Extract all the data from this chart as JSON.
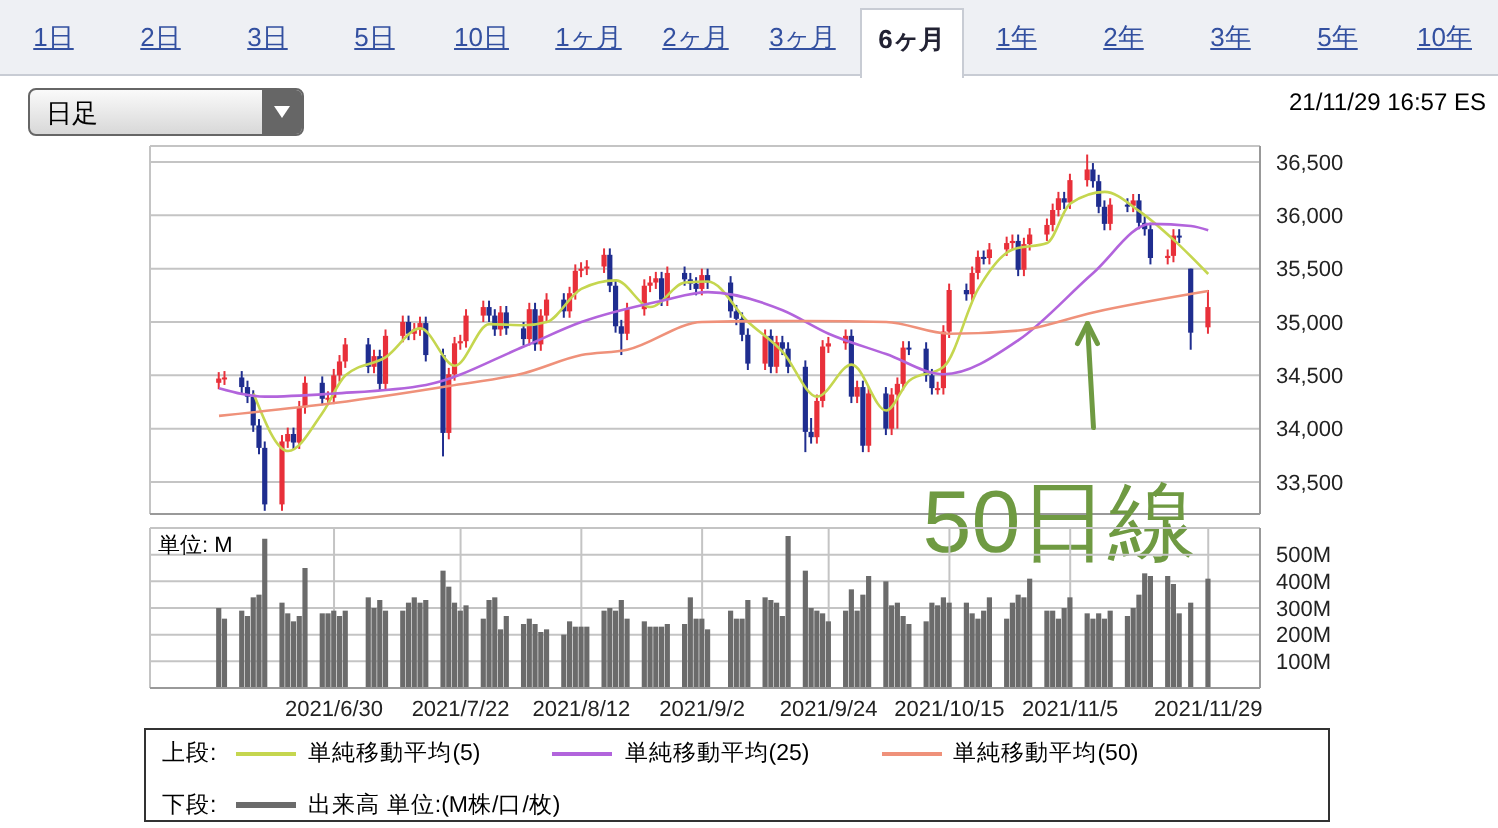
{
  "chart_data": [
    {
      "type": "other",
      "annotations": [
        "1日",
        "2日",
        "3日",
        "5日",
        "10日",
        "1ヶ月",
        "2ヶ月",
        "3ヶ月",
        "6ヶ月",
        "1年",
        "2年",
        "3年",
        "5年",
        "10年",
        "日足",
        "21/11/29 16:57 ES"
      ]
    },
    {
      "type": "candlestick",
      "legend_title": "上段:",
      "legend": "bottom",
      "grid": true,
      "tick_labels": "y",
      "colors": [
        "#e8303a",
        "#e8303a",
        "#1f2d8f",
        "#1f2d8f",
        "#1f2d8f",
        "#1f2d8f",
        "#1f2d8f",
        "#e8303a",
        "#e8303a",
        "#1f2d8f",
        "#e8303a",
        "#e8303a",
        "#1f2d8f",
        "#e8303a",
        "#e8303a",
        "#e8303a",
        "#e8303a",
        "#1f2d8f",
        "#e8303a",
        "#1f2d8f",
        "#e8303a",
        "#e8303a",
        "#1f2d8f",
        "#e8303a",
        "#e8303a",
        "#1f2d8f",
        "#1f2d8f",
        "#e8303a",
        "#e8303a",
        "#e8303a",
        "#e8303a",
        "#e8303a",
        "#1f2d8f",
        "#1f2d8f",
        "#e8303a",
        "#1f2d8f",
        "#1f2d8f",
        "#e8303a",
        "#1f2d8f",
        "#e8303a",
        "#e8303a",
        "#1f2d8f",
        "#e8303a",
        "#e8303a",
        "#e8303a",
        "#e8303a",
        "#e8303a",
        "#1f2d8f",
        "#1f2d8f",
        "#1f2d8f",
        "#e8303a",
        "#e8303a",
        "#e8303a",
        "#e8303a",
        "#1f2d8f",
        "#e8303a",
        "#1f2d8f",
        "#1f2d8f",
        "#1f2d8f",
        "#e8303a",
        "#1f2d8f",
        "#1f2d8f",
        "#1f2d8f",
        "#1f2d8f",
        "#1f2d8f",
        "#e8303a",
        "#1f2d8f",
        "#e8303a",
        "#1f2d8f",
        "#1f2d8f",
        "#1f2d8f",
        "#1f2d8f",
        "#e8303a",
        "#e8303a",
        "#e8303a",
        "#e8303a",
        "#1f2d8f",
        "#e8303a",
        "#1f2d8f",
        "#e8303a",
        "#1f2d8f",
        "#e8303a",
        "#e8303a",
        "#e8303a",
        "#1f2d8f",
        "#1f2d8f",
        "#1f2d8f",
        "#e8303a",
        "#e8303a",
        "#e8303a",
        "#1f2d8f",
        "#e8303a",
        "#e8303a",
        "#1f2d8f",
        "#e8303a",
        "#e8303a",
        "#e8303a",
        "#1f2d8f",
        "#e8303a",
        "#e8303a",
        "#e8303a",
        "#e8303a",
        "#e8303a",
        "#1f2d8f",
        "#e8303a",
        "#e8303a",
        "#1f2d8f",
        "#1f2d8f",
        "#1f2d8f",
        "#e8303a",
        "#1f2d8f",
        "#e8303a",
        "#1f2d8f",
        "#1f2d8f",
        "#1f2d8f",
        "#e8303a",
        "#e8303a",
        "#1f2d8f",
        "#1f2d8f",
        "#e8303a"
      ],
      "x": [
        "2021-06-10",
        "2021-06-11",
        "2021-06-14",
        "2021-06-15",
        "2021-06-16",
        "2021-06-17",
        "2021-06-18",
        "2021-06-21",
        "2021-06-22",
        "2021-06-23",
        "2021-06-24",
        "2021-06-25",
        "2021-06-28",
        "2021-06-29",
        "2021-06-30",
        "2021-07-01",
        "2021-07-02",
        "2021-07-06",
        "2021-07-07",
        "2021-07-08",
        "2021-07-09",
        "2021-07-12",
        "2021-07-13",
        "2021-07-14",
        "2021-07-15",
        "2021-07-16",
        "2021-07-19",
        "2021-07-20",
        "2021-07-21",
        "2021-07-22",
        "2021-07-23",
        "2021-07-26",
        "2021-07-27",
        "2021-07-28",
        "2021-07-29",
        "2021-07-30",
        "2021-08-02",
        "2021-08-03",
        "2021-08-04",
        "2021-08-05",
        "2021-08-06",
        "2021-08-09",
        "2021-08-10",
        "2021-08-11",
        "2021-08-12",
        "2021-08-13",
        "2021-08-16",
        "2021-08-17",
        "2021-08-18",
        "2021-08-19",
        "2021-08-20",
        "2021-08-23",
        "2021-08-24",
        "2021-08-25",
        "2021-08-26",
        "2021-08-27",
        "2021-08-30",
        "2021-08-31",
        "2021-09-01",
        "2021-09-02",
        "2021-09-03",
        "2021-09-07",
        "2021-09-08",
        "2021-09-09",
        "2021-09-10",
        "2021-09-13",
        "2021-09-14",
        "2021-09-15",
        "2021-09-16",
        "2021-09-17",
        "2021-09-20",
        "2021-09-21",
        "2021-09-22",
        "2021-09-23",
        "2021-09-24",
        "2021-09-27",
        "2021-09-28",
        "2021-09-29",
        "2021-09-30",
        "2021-10-01",
        "2021-10-04",
        "2021-10-05",
        "2021-10-06",
        "2021-10-07",
        "2021-10-08",
        "2021-10-11",
        "2021-10-12",
        "2021-10-13",
        "2021-10-14",
        "2021-10-15",
        "2021-10-18",
        "2021-10-19",
        "2021-10-20",
        "2021-10-21",
        "2021-10-22",
        "2021-10-25",
        "2021-10-26",
        "2021-10-27",
        "2021-10-28",
        "2021-10-29",
        "2021-11-01",
        "2021-11-02",
        "2021-11-03",
        "2021-11-04",
        "2021-11-05",
        "2021-11-08",
        "2021-11-09",
        "2021-11-10",
        "2021-11-11",
        "2021-11-12",
        "2021-11-15",
        "2021-11-16",
        "2021-11-17",
        "2021-11-18",
        "2021-11-19",
        "2021-11-22",
        "2021-11-23",
        "2021-11-24",
        "2021-11-26",
        "2021-11-29"
      ],
      "ohlc": [
        [
          34430,
          34530,
          34370,
          34470
        ],
        [
          34470,
          34540,
          34410,
          34480
        ],
        [
          34480,
          34540,
          34330,
          34390
        ],
        [
          34390,
          34450,
          34240,
          34300
        ],
        [
          34300,
          34360,
          33970,
          34030
        ],
        [
          34030,
          34090,
          33760,
          33820
        ],
        [
          33820,
          33880,
          33230,
          33290
        ],
        [
          33290,
          33940,
          33230,
          33880
        ],
        [
          33880,
          34010,
          33820,
          33950
        ],
        [
          33950,
          34010,
          33810,
          33870
        ],
        [
          33870,
          34260,
          33810,
          34200
        ],
        [
          34200,
          34490,
          34140,
          34430
        ],
        [
          34430,
          34490,
          34220,
          34280
        ],
        [
          34280,
          34350,
          34220,
          34290
        ],
        [
          34290,
          34560,
          34230,
          34500
        ],
        [
          34500,
          34690,
          34440,
          34630
        ],
        [
          34630,
          34850,
          34570,
          34790
        ],
        [
          34790,
          34850,
          34520,
          34580
        ],
        [
          34580,
          34740,
          34520,
          34680
        ],
        [
          34680,
          34740,
          34360,
          34420
        ],
        [
          34420,
          34930,
          34360,
          34870
        ],
        [
          34870,
          35060,
          34810,
          35000
        ],
        [
          35000,
          35060,
          34830,
          34890
        ],
        [
          34890,
          34990,
          34830,
          34930
        ],
        [
          34930,
          35050,
          34870,
          34990
        ],
        [
          34990,
          35050,
          34630,
          34690
        ],
        [
          34690,
          34750,
          33740,
          33960
        ],
        [
          33960,
          34570,
          33900,
          34510
        ],
        [
          34510,
          34860,
          34450,
          34800
        ],
        [
          34800,
          34880,
          34740,
          34820
        ],
        [
          34820,
          35120,
          34760,
          35060
        ],
        [
          35060,
          35200,
          35000,
          35140
        ],
        [
          35140,
          35200,
          35000,
          35060
        ],
        [
          35060,
          35120,
          34870,
          34930
        ],
        [
          34930,
          35150,
          34870,
          35090
        ],
        [
          35090,
          35150,
          34880,
          34940
        ],
        [
          34940,
          35000,
          34780,
          34840
        ],
        [
          34840,
          35180,
          34780,
          35120
        ],
        [
          35120,
          35180,
          34730,
          34790
        ],
        [
          34790,
          35120,
          34730,
          35060
        ],
        [
          35060,
          35270,
          35000,
          35210
        ],
        [
          35210,
          35270,
          35040,
          35100
        ],
        [
          35100,
          35330,
          35040,
          35270
        ],
        [
          35270,
          35540,
          35210,
          35480
        ],
        [
          35480,
          35560,
          35420,
          35500
        ],
        [
          35500,
          35580,
          35440,
          35520
        ],
        [
          35520,
          35690,
          35460,
          35630
        ],
        [
          35630,
          35690,
          35280,
          35340
        ],
        [
          35340,
          35400,
          34900,
          34960
        ],
        [
          34960,
          35020,
          34690,
          34890
        ],
        [
          34890,
          35180,
          34830,
          35120
        ],
        [
          35120,
          35400,
          35060,
          35340
        ],
        [
          35340,
          35430,
          35280,
          35370
        ],
        [
          35370,
          35470,
          35310,
          35410
        ],
        [
          35410,
          35470,
          35150,
          35210
        ],
        [
          35210,
          35520,
          35150,
          35460
        ],
        [
          35460,
          35520,
          35340,
          35400
        ],
        [
          35400,
          35460,
          35300,
          35360
        ],
        [
          35360,
          35420,
          35250,
          35310
        ],
        [
          35310,
          35500,
          35250,
          35440
        ],
        [
          35440,
          35500,
          35310,
          35370
        ],
        [
          35370,
          35430,
          35040,
          35100
        ],
        [
          35100,
          35160,
          34970,
          35030
        ],
        [
          35030,
          35090,
          34820,
          34880
        ],
        [
          34880,
          34940,
          34550,
          34610
        ],
        [
          34610,
          34930,
          34550,
          34870
        ],
        [
          34870,
          34930,
          34520,
          34580
        ],
        [
          34580,
          34870,
          34520,
          34810
        ],
        [
          34810,
          34870,
          34690,
          34750
        ],
        [
          34750,
          34810,
          34520,
          34580
        ],
        [
          34580,
          34640,
          33780,
          33970
        ],
        [
          33970,
          34100,
          33860,
          33920
        ],
        [
          33920,
          34320,
          33860,
          34260
        ],
        [
          34260,
          34830,
          34200,
          34770
        ],
        [
          34770,
          34860,
          34710,
          34800
        ],
        [
          34800,
          34930,
          34740,
          34870
        ],
        [
          34870,
          34930,
          34240,
          34300
        ],
        [
          34300,
          34450,
          34240,
          34390
        ],
        [
          34390,
          34450,
          33780,
          33840
        ],
        [
          33840,
          34390,
          33780,
          34330
        ],
        [
          34330,
          34390,
          33940,
          34000
        ],
        [
          34000,
          34380,
          33940,
          34320
        ],
        [
          34320,
          34480,
          34000,
          34420
        ],
        [
          34420,
          34820,
          34360,
          34760
        ],
        [
          34760,
          34820,
          34690,
          34750
        ],
        [
          34750,
          34810,
          34440,
          34500
        ],
        [
          34500,
          34560,
          34320,
          34380
        ],
        [
          34380,
          34440,
          34320,
          34380
        ],
        [
          34380,
          34970,
          34320,
          34910
        ],
        [
          34910,
          35360,
          34850,
          35300
        ],
        [
          35300,
          35360,
          35200,
          35260
        ],
        [
          35260,
          35520,
          35200,
          35460
        ],
        [
          35460,
          35670,
          35400,
          35610
        ],
        [
          35610,
          35670,
          35540,
          35600
        ],
        [
          35600,
          35740,
          35540,
          35680
        ],
        [
          35680,
          35800,
          35620,
          35740
        ],
        [
          35740,
          35820,
          35680,
          35760
        ],
        [
          35760,
          35820,
          35430,
          35490
        ],
        [
          35490,
          35790,
          35430,
          35730
        ],
        [
          35730,
          35880,
          35670,
          35820
        ],
        [
          35820,
          35970,
          35760,
          35910
        ],
        [
          35910,
          36110,
          35850,
          36050
        ],
        [
          36050,
          36220,
          35990,
          36160
        ],
        [
          36160,
          36220,
          36060,
          36120
        ],
        [
          36120,
          36390,
          36060,
          36330
        ],
        [
          36330,
          36570,
          36270,
          36430
        ],
        [
          36430,
          36490,
          36260,
          36320
        ],
        [
          36320,
          36380,
          36020,
          36080
        ],
        [
          36080,
          36140,
          35860,
          35920
        ],
        [
          35920,
          36160,
          35860,
          36100
        ],
        [
          36100,
          36160,
          36030,
          36090
        ],
        [
          36090,
          36200,
          36030,
          36140
        ],
        [
          36140,
          36200,
          35870,
          35930
        ],
        [
          35930,
          35990,
          35810,
          35870
        ],
        [
          35870,
          35930,
          35540,
          35600
        ],
        [
          35600,
          35680,
          35540,
          35620
        ],
        [
          35620,
          35870,
          35560,
          35810
        ],
        [
          35810,
          35870,
          35740,
          35800
        ],
        [
          35500,
          35500,
          34740,
          34900
        ],
        [
          34950,
          35300,
          34890,
          35140
        ]
      ],
      "series": [
        {
          "type": "line",
          "name": "単純移動平均(5)",
          "color": "#c5d64f",
          "x": [
            "2021-06-16",
            "2021-06-22",
            "2021-06-28",
            "2021-07-02",
            "2021-07-09",
            "2021-07-15",
            "2021-07-21",
            "2021-07-27",
            "2021-08-02",
            "2021-08-06",
            "2021-08-12",
            "2021-08-18",
            "2021-08-24",
            "2021-08-30",
            "2021-09-03",
            "2021-09-10",
            "2021-09-16",
            "2021-09-22",
            "2021-09-28",
            "2021-10-04",
            "2021-10-08",
            "2021-10-14",
            "2021-10-20",
            "2021-10-26",
            "2021-11-01",
            "2021-11-05",
            "2021-11-11",
            "2021-11-17",
            "2021-11-23",
            "2021-11-29"
          ],
          "values": [
            34330,
            33790,
            34150,
            34500,
            34670,
            34940,
            34590,
            34980,
            34970,
            35000,
            35310,
            35390,
            35140,
            35370,
            35380,
            35000,
            34720,
            34300,
            34600,
            34170,
            34450,
            34580,
            35310,
            35680,
            35740,
            36110,
            36220,
            36040,
            35770,
            35450
          ]
        },
        {
          "type": "line",
          "name": "単純移動平均(25)",
          "color": "#b264dc",
          "x": [
            "2021-06-10",
            "2021-06-18",
            "2021-06-30",
            "2021-07-16",
            "2021-08-02",
            "2021-08-12",
            "2021-08-26",
            "2021-09-03",
            "2021-09-16",
            "2021-09-24",
            "2021-10-04",
            "2021-10-14",
            "2021-10-27",
            "2021-11-09",
            "2021-11-19",
            "2021-11-26",
            "2021-11-29"
          ],
          "values": [
            34380,
            34300,
            34330,
            34410,
            34770,
            35000,
            35200,
            35280,
            35110,
            34890,
            34700,
            34510,
            34830,
            35460,
            35920,
            35900,
            35860
          ]
        },
        {
          "type": "line",
          "name": "単純移動平均(50)",
          "color": "#ef917a",
          "x": [
            "2021-06-10",
            "2021-06-30",
            "2021-07-20",
            "2021-08-02",
            "2021-08-12",
            "2021-08-20",
            "2021-09-02",
            "2021-09-20",
            "2021-10-04",
            "2021-10-15",
            "2021-10-27",
            "2021-11-09",
            "2021-11-29"
          ],
          "values": [
            34120,
            34240,
            34400,
            34520,
            34690,
            34740,
            35000,
            35010,
            35000,
            34890,
            34920,
            35090,
            35290
          ]
        }
      ],
      "xlim": [
        "2021-05-29",
        "2021-12-08"
      ],
      "xticks": [
        {
          "value": "2021-06-30",
          "label": null
        },
        {
          "value": "2021-07-22",
          "label": null
        },
        {
          "value": "2021-08-12",
          "label": null
        },
        {
          "value": "2021-09-02",
          "label": null
        },
        {
          "value": "2021-09-24",
          "label": null
        },
        {
          "value": "2021-10-15",
          "label": null
        },
        {
          "value": "2021-11-05",
          "label": null
        },
        {
          "value": "2021-11-29",
          "label": null
        }
      ],
      "ylim": [
        33200,
        36650
      ],
      "yticks": [
        {
          "value": 33500,
          "label": "33,500"
        },
        {
          "value": 34000,
          "label": "34,000"
        },
        {
          "value": 34500,
          "label": "34,500"
        },
        {
          "value": 35000,
          "label": "35,000"
        },
        {
          "value": 35500,
          "label": "35,500"
        },
        {
          "value": 36000,
          "label": "36,000"
        },
        {
          "value": 36500,
          "label": "36,500"
        }
      ],
      "annotations": [
        {
          "text": "50日線",
          "x": "2021-11-08",
          "y": 35060
        }
      ]
    },
    {
      "type": "bar",
      "legend_title": "下段:",
      "legend": "bottom",
      "grid": true,
      "ylabel": "単位: M",
      "x": [
        "2021-06-10",
        "2021-06-11",
        "2021-06-14",
        "2021-06-15",
        "2021-06-16",
        "2021-06-17",
        "2021-06-18",
        "2021-06-21",
        "2021-06-22",
        "2021-06-23",
        "2021-06-24",
        "2021-06-25",
        "2021-06-28",
        "2021-06-29",
        "2021-06-30",
        "2021-07-01",
        "2021-07-02",
        "2021-07-06",
        "2021-07-07",
        "2021-07-08",
        "2021-07-09",
        "2021-07-12",
        "2021-07-13",
        "2021-07-14",
        "2021-07-15",
        "2021-07-16",
        "2021-07-19",
        "2021-07-20",
        "2021-07-21",
        "2021-07-22",
        "2021-07-23",
        "2021-07-26",
        "2021-07-27",
        "2021-07-28",
        "2021-07-29",
        "2021-07-30",
        "2021-08-02",
        "2021-08-03",
        "2021-08-04",
        "2021-08-05",
        "2021-08-06",
        "2021-08-09",
        "2021-08-10",
        "2021-08-11",
        "2021-08-12",
        "2021-08-13",
        "2021-08-16",
        "2021-08-17",
        "2021-08-18",
        "2021-08-19",
        "2021-08-20",
        "2021-08-23",
        "2021-08-24",
        "2021-08-25",
        "2021-08-26",
        "2021-08-27",
        "2021-08-30",
        "2021-08-31",
        "2021-09-01",
        "2021-09-02",
        "2021-09-03",
        "2021-09-07",
        "2021-09-08",
        "2021-09-09",
        "2021-09-10",
        "2021-09-13",
        "2021-09-14",
        "2021-09-15",
        "2021-09-16",
        "2021-09-17",
        "2021-09-20",
        "2021-09-21",
        "2021-09-22",
        "2021-09-23",
        "2021-09-24",
        "2021-09-27",
        "2021-09-28",
        "2021-09-29",
        "2021-09-30",
        "2021-10-01",
        "2021-10-04",
        "2021-10-05",
        "2021-10-06",
        "2021-10-07",
        "2021-10-08",
        "2021-10-11",
        "2021-10-12",
        "2021-10-13",
        "2021-10-14",
        "2021-10-15",
        "2021-10-18",
        "2021-10-19",
        "2021-10-20",
        "2021-10-21",
        "2021-10-22",
        "2021-10-25",
        "2021-10-26",
        "2021-10-27",
        "2021-10-28",
        "2021-10-29",
        "2021-11-01",
        "2021-11-02",
        "2021-11-03",
        "2021-11-04",
        "2021-11-05",
        "2021-11-08",
        "2021-11-09",
        "2021-11-10",
        "2021-11-11",
        "2021-11-12",
        "2021-11-15",
        "2021-11-16",
        "2021-11-17",
        "2021-11-18",
        "2021-11-19",
        "2021-11-22",
        "2021-11-23",
        "2021-11-24",
        "2021-11-26",
        "2021-11-29"
      ],
      "series": [
        {
          "name": "出来高 単位:(M株/口/枚)",
          "color": "#6b6b6b",
          "values": [
            300,
            260,
            290,
            270,
            340,
            350,
            560,
            320,
            280,
            250,
            270,
            450,
            280,
            280,
            290,
            270,
            290,
            340,
            300,
            330,
            290,
            290,
            320,
            340,
            320,
            330,
            440,
            380,
            320,
            290,
            310,
            260,
            330,
            340,
            220,
            270,
            240,
            260,
            240,
            210,
            220,
            200,
            250,
            230,
            230,
            230,
            290,
            300,
            290,
            330,
            260,
            250,
            230,
            230,
            230,
            240,
            240,
            340,
            260,
            260,
            220,
            290,
            260,
            260,
            330,
            340,
            330,
            320,
            270,
            570,
            440,
            300,
            290,
            280,
            250,
            290,
            370,
            290,
            350,
            420,
            400,
            310,
            320,
            270,
            240,
            250,
            320,
            310,
            340,
            320,
            320,
            280,
            260,
            290,
            340,
            260,
            320,
            350,
            340,
            410,
            290,
            290,
            260,
            300,
            340,
            280,
            260,
            280,
            260,
            290,
            270,
            300,
            350,
            430,
            420,
            420,
            390,
            280,
            320,
            410
          ]
        }
      ],
      "xlim": [
        "2021-05-29",
        "2021-12-08"
      ],
      "xticks": [
        {
          "value": "2021-06-30",
          "label": "2021/6/30"
        },
        {
          "value": "2021-07-22",
          "label": "2021/7/22"
        },
        {
          "value": "2021-08-12",
          "label": "2021/8/12"
        },
        {
          "value": "2021-09-02",
          "label": "2021/9/2"
        },
        {
          "value": "2021-09-24",
          "label": "2021/9/24"
        },
        {
          "value": "2021-10-15",
          "label": "2021/10/15"
        },
        {
          "value": "2021-11-05",
          "label": "2021/11/5"
        },
        {
          "value": "2021-11-29",
          "label": "2021/11/29"
        }
      ],
      "ylim": [
        0,
        600
      ],
      "yticks": [
        {
          "value": 100,
          "label": "100M"
        },
        {
          "value": 200,
          "label": "200M"
        },
        {
          "value": 300,
          "label": "300M"
        },
        {
          "value": 400,
          "label": "400M"
        },
        {
          "value": 500,
          "label": "500M"
        }
      ]
    }
  ]
}
